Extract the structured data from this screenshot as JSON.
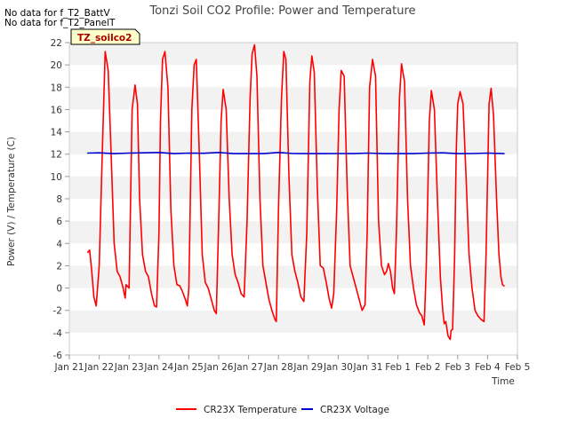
{
  "notes": [
    "No data for f_T2_BattV",
    "No data for f_T2_PanelT"
  ],
  "badge": "TZ_soilco2",
  "chart_data": {
    "type": "line",
    "title": "Tonzi Soil CO2 Profile: Power and Temperature",
    "xlabel": "Time",
    "ylabel": "Power (V) / Temperature (C)",
    "ylim": [
      -6,
      22
    ],
    "yticks": [
      -6,
      -4,
      -2,
      0,
      2,
      4,
      6,
      8,
      10,
      12,
      14,
      16,
      18,
      20,
      22
    ],
    "ytick_labels": [
      "-6",
      "-4",
      "-2",
      "0",
      "2",
      "4",
      "6",
      "8",
      "10",
      "12",
      "14",
      "16",
      "18",
      "20",
      "22"
    ],
    "xlim": [
      0,
      15
    ],
    "xticks": [
      0,
      1,
      2,
      3,
      4,
      5,
      6,
      7,
      8,
      9,
      10,
      11,
      12,
      13,
      14,
      15
    ],
    "xtick_labels": [
      "Jan 21",
      "Jan 22",
      "Jan 23",
      "Jan 24",
      "Jan 25",
      "Jan 26",
      "Jan 27",
      "Jan 28",
      "Jan 29",
      "Jan 30",
      "Jan 31",
      "Feb 1",
      "Feb 2",
      "Feb 3",
      "Feb 4",
      "Feb 5"
    ],
    "grid": "horizontal bands",
    "legend_position": "bottom-center",
    "series": [
      {
        "name": "CR23X Temperature",
        "color": "#ff0000",
        "points": [
          [
            0.62,
            3.2
          ],
          [
            0.68,
            3.4
          ],
          [
            0.75,
            1.5
          ],
          [
            0.82,
            -0.8
          ],
          [
            0.9,
            -1.6
          ],
          [
            1.0,
            2.0
          ],
          [
            1.1,
            12.0
          ],
          [
            1.2,
            21.2
          ],
          [
            1.3,
            19.5
          ],
          [
            1.4,
            12.0
          ],
          [
            1.5,
            4.0
          ],
          [
            1.6,
            1.5
          ],
          [
            1.7,
            1.0
          ],
          [
            1.8,
            0.0
          ],
          [
            1.87,
            -0.9
          ],
          [
            1.9,
            0.3
          ],
          [
            2.0,
            0.0
          ],
          [
            2.1,
            16.0
          ],
          [
            2.2,
            18.2
          ],
          [
            2.28,
            16.5
          ],
          [
            2.35,
            8.0
          ],
          [
            2.45,
            3.0
          ],
          [
            2.55,
            1.5
          ],
          [
            2.65,
            1.0
          ],
          [
            2.75,
            -0.5
          ],
          [
            2.85,
            -1.6
          ],
          [
            2.92,
            -1.7
          ],
          [
            3.0,
            5.0
          ],
          [
            3.05,
            15.0
          ],
          [
            3.12,
            20.5
          ],
          [
            3.2,
            21.2
          ],
          [
            3.3,
            18.0
          ],
          [
            3.4,
            7.0
          ],
          [
            3.5,
            2.0
          ],
          [
            3.6,
            0.3
          ],
          [
            3.7,
            0.2
          ],
          [
            3.8,
            -0.4
          ],
          [
            3.88,
            -1.0
          ],
          [
            3.95,
            -1.6
          ],
          [
            4.0,
            0.0
          ],
          [
            4.1,
            16.0
          ],
          [
            4.18,
            20.0
          ],
          [
            4.25,
            20.5
          ],
          [
            4.35,
            12.0
          ],
          [
            4.45,
            3.0
          ],
          [
            4.55,
            0.5
          ],
          [
            4.65,
            0.0
          ],
          [
            4.75,
            -1.0
          ],
          [
            4.85,
            -2.0
          ],
          [
            4.92,
            -2.3
          ],
          [
            5.0,
            6.0
          ],
          [
            5.08,
            15.0
          ],
          [
            5.15,
            17.8
          ],
          [
            5.25,
            16.0
          ],
          [
            5.35,
            8.0
          ],
          [
            5.45,
            3.0
          ],
          [
            5.55,
            1.2
          ],
          [
            5.65,
            0.5
          ],
          [
            5.75,
            -0.5
          ],
          [
            5.85,
            -0.8
          ],
          [
            5.95,
            6.0
          ],
          [
            6.05,
            17.0
          ],
          [
            6.12,
            21.0
          ],
          [
            6.2,
            21.8
          ],
          [
            6.28,
            19.0
          ],
          [
            6.38,
            8.0
          ],
          [
            6.48,
            2.0
          ],
          [
            6.58,
            0.5
          ],
          [
            6.68,
            -1.0
          ],
          [
            6.78,
            -2.0
          ],
          [
            6.88,
            -2.8
          ],
          [
            6.93,
            -3.0
          ],
          [
            7.0,
            7.0
          ],
          [
            7.1,
            17.0
          ],
          [
            7.18,
            21.2
          ],
          [
            7.25,
            20.5
          ],
          [
            7.35,
            10.0
          ],
          [
            7.45,
            3.0
          ],
          [
            7.55,
            1.5
          ],
          [
            7.65,
            0.5
          ],
          [
            7.75,
            -0.8
          ],
          [
            7.85,
            -1.2
          ],
          [
            7.95,
            5.0
          ],
          [
            8.05,
            18.5
          ],
          [
            8.12,
            20.8
          ],
          [
            8.2,
            19.3
          ],
          [
            8.3,
            9.0
          ],
          [
            8.4,
            2.0
          ],
          [
            8.5,
            1.8
          ],
          [
            8.6,
            0.5
          ],
          [
            8.7,
            -1.0
          ],
          [
            8.78,
            -1.8
          ],
          [
            8.85,
            -0.5
          ],
          [
            8.95,
            7.0
          ],
          [
            9.03,
            16.0
          ],
          [
            9.1,
            19.5
          ],
          [
            9.2,
            19.0
          ],
          [
            9.3,
            9.0
          ],
          [
            9.4,
            2.0
          ],
          [
            9.5,
            1.0
          ],
          [
            9.6,
            0.0
          ],
          [
            9.7,
            -1.0
          ],
          [
            9.8,
            -2.0
          ],
          [
            9.9,
            -1.5
          ],
          [
            9.97,
            5.0
          ],
          [
            10.05,
            18.0
          ],
          [
            10.15,
            20.5
          ],
          [
            10.25,
            19.0
          ],
          [
            10.35,
            6.0
          ],
          [
            10.45,
            2.0
          ],
          [
            10.55,
            1.2
          ],
          [
            10.62,
            1.5
          ],
          [
            10.68,
            2.2
          ],
          [
            10.75,
            1.5
          ],
          [
            10.82,
            0.0
          ],
          [
            10.88,
            -0.5
          ],
          [
            10.95,
            5.0
          ],
          [
            11.05,
            17.0
          ],
          [
            11.12,
            20.1
          ],
          [
            11.22,
            18.5
          ],
          [
            11.32,
            8.0
          ],
          [
            11.42,
            2.0
          ],
          [
            11.52,
            0.0
          ],
          [
            11.62,
            -1.5
          ],
          [
            11.72,
            -2.2
          ],
          [
            11.8,
            -2.5
          ],
          [
            11.88,
            -3.3
          ],
          [
            11.95,
            2.0
          ],
          [
            12.05,
            15.0
          ],
          [
            12.12,
            17.7
          ],
          [
            12.22,
            16.0
          ],
          [
            12.32,
            8.0
          ],
          [
            12.42,
            1.0
          ],
          [
            12.5,
            -2.0
          ],
          [
            12.55,
            -3.2
          ],
          [
            12.6,
            -3.0
          ],
          [
            12.68,
            -4.3
          ],
          [
            12.75,
            -4.6
          ],
          [
            12.78,
            -3.8
          ],
          [
            12.83,
            -3.7
          ],
          [
            12.9,
            3.0
          ],
          [
            12.95,
            12.0
          ],
          [
            13.0,
            16.5
          ],
          [
            13.08,
            17.6
          ],
          [
            13.18,
            16.5
          ],
          [
            13.28,
            10.0
          ],
          [
            13.38,
            3.0
          ],
          [
            13.48,
            0.0
          ],
          [
            13.58,
            -2.0
          ],
          [
            13.68,
            -2.5
          ],
          [
            13.78,
            -2.8
          ],
          [
            13.88,
            -3.0
          ],
          [
            13.95,
            3.0
          ],
          [
            14.05,
            16.5
          ],
          [
            14.12,
            17.9
          ],
          [
            14.2,
            15.5
          ],
          [
            14.3,
            8.0
          ],
          [
            14.38,
            3.0
          ],
          [
            14.45,
            1.0
          ],
          [
            14.5,
            0.3
          ],
          [
            14.55,
            0.2
          ]
        ]
      },
      {
        "name": "CR23X Voltage",
        "color": "#0000cc",
        "points": [
          [
            0.62,
            12.1
          ],
          [
            1.0,
            12.12
          ],
          [
            1.5,
            12.05
          ],
          [
            2.0,
            12.1
          ],
          [
            2.5,
            12.12
          ],
          [
            3.0,
            12.15
          ],
          [
            3.5,
            12.05
          ],
          [
            4.0,
            12.1
          ],
          [
            4.5,
            12.08
          ],
          [
            5.0,
            12.15
          ],
          [
            5.5,
            12.05
          ],
          [
            6.0,
            12.05
          ],
          [
            6.5,
            12.05
          ],
          [
            7.0,
            12.15
          ],
          [
            7.5,
            12.06
          ],
          [
            8.0,
            12.05
          ],
          [
            8.5,
            12.05
          ],
          [
            9.0,
            12.06
          ],
          [
            9.5,
            12.05
          ],
          [
            10.0,
            12.1
          ],
          [
            10.5,
            12.05
          ],
          [
            11.0,
            12.05
          ],
          [
            11.5,
            12.05
          ],
          [
            12.0,
            12.1
          ],
          [
            12.5,
            12.12
          ],
          [
            13.0,
            12.05
          ],
          [
            13.5,
            12.06
          ],
          [
            14.0,
            12.1
          ],
          [
            14.55,
            12.05
          ]
        ]
      }
    ]
  }
}
